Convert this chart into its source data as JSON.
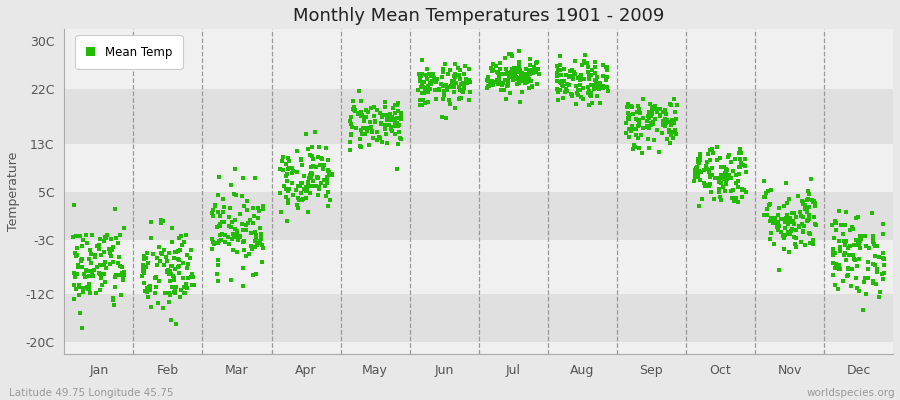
{
  "title": "Monthly Mean Temperatures 1901 - 2009",
  "ylabel": "Temperature",
  "subtitle": "Latitude 49.75 Longitude 45.75",
  "credit": "worldspecies.org",
  "yticks": [
    -20,
    -12,
    -3,
    5,
    13,
    22,
    30
  ],
  "ytick_labels": [
    "-20C",
    "-12C",
    "-3C",
    "5C",
    "13C",
    "22C",
    "30C"
  ],
  "ylim": [
    -22,
    32
  ],
  "months": [
    "Jan",
    "Feb",
    "Mar",
    "Apr",
    "May",
    "Jun",
    "Jul",
    "Aug",
    "Sep",
    "Oct",
    "Nov",
    "Dec"
  ],
  "dot_color": "#22BB00",
  "bg_color": "#e8e8e8",
  "plot_bg_light": "#f0f0f0",
  "plot_bg_dark": "#e0e0e0",
  "legend_label": "Mean Temp",
  "dot_size": 6,
  "mean_temps": [
    -7.5,
    -8.5,
    -1.0,
    7.5,
    16.5,
    22.5,
    24.5,
    23.0,
    16.5,
    8.0,
    0.5,
    -5.5
  ],
  "std_temps": [
    3.8,
    4.0,
    3.5,
    2.8,
    2.2,
    1.8,
    1.6,
    1.8,
    2.2,
    2.5,
    3.0,
    3.5
  ],
  "n_years": 109
}
